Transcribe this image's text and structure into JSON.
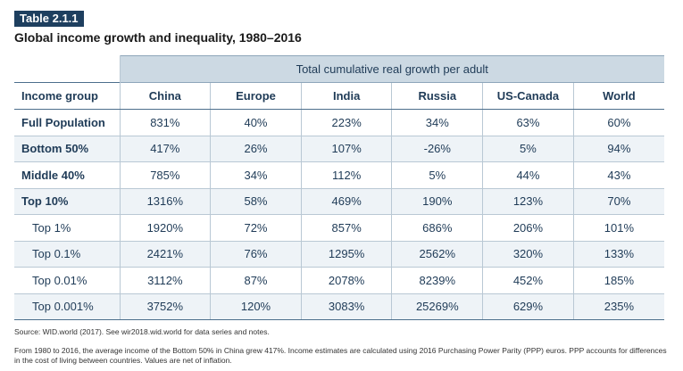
{
  "badge": "Table 2.1.1",
  "title": "Global income growth and inequality, 1980–2016",
  "group_header": "Total cumulative real growth per adult",
  "columns": [
    "Income group",
    "China",
    "Europe",
    "India",
    "Russia",
    "US-Canada",
    "World"
  ],
  "rows": [
    {
      "label": "Full Population",
      "cells": [
        "831%",
        "40%",
        "223%",
        "34%",
        "63%",
        "60%"
      ]
    },
    {
      "label": "Bottom 50%",
      "cells": [
        "417%",
        "26%",
        "107%",
        "-26%",
        "5%",
        "94%"
      ]
    },
    {
      "label": "Middle 40%",
      "cells": [
        "785%",
        "34%",
        "112%",
        "5%",
        "44%",
        "43%"
      ]
    },
    {
      "label": "Top 10%",
      "cells": [
        "1316%",
        "58%",
        "469%",
        "190%",
        "123%",
        "70%"
      ]
    },
    {
      "label": "Top 1%",
      "cells": [
        "1920%",
        "72%",
        "857%",
        "686%",
        "206%",
        "101%"
      ]
    },
    {
      "label": "Top 0.1%",
      "cells": [
        "2421%",
        "76%",
        "1295%",
        "2562%",
        "320%",
        "133%"
      ]
    },
    {
      "label": "Top 0.01%",
      "cells": [
        "3112%",
        "87%",
        "2078%",
        "8239%",
        "452%",
        "185%"
      ]
    },
    {
      "label": "Top 0.001%",
      "cells": [
        "3752%",
        "120%",
        "3083%",
        "25269%",
        "629%",
        "235%"
      ]
    }
  ],
  "source": "Source: WID.world (2017). See wir2018.wid.world for data series and notes.",
  "note": "From 1980 to 2016, the average income of the Bottom 50% in China grew 417%. Income estimates are calculated using 2016 Purchasing Power Parity (PPP) euros. PPP accounts for differences in the cost of living between countries. Values are net of inflation."
}
